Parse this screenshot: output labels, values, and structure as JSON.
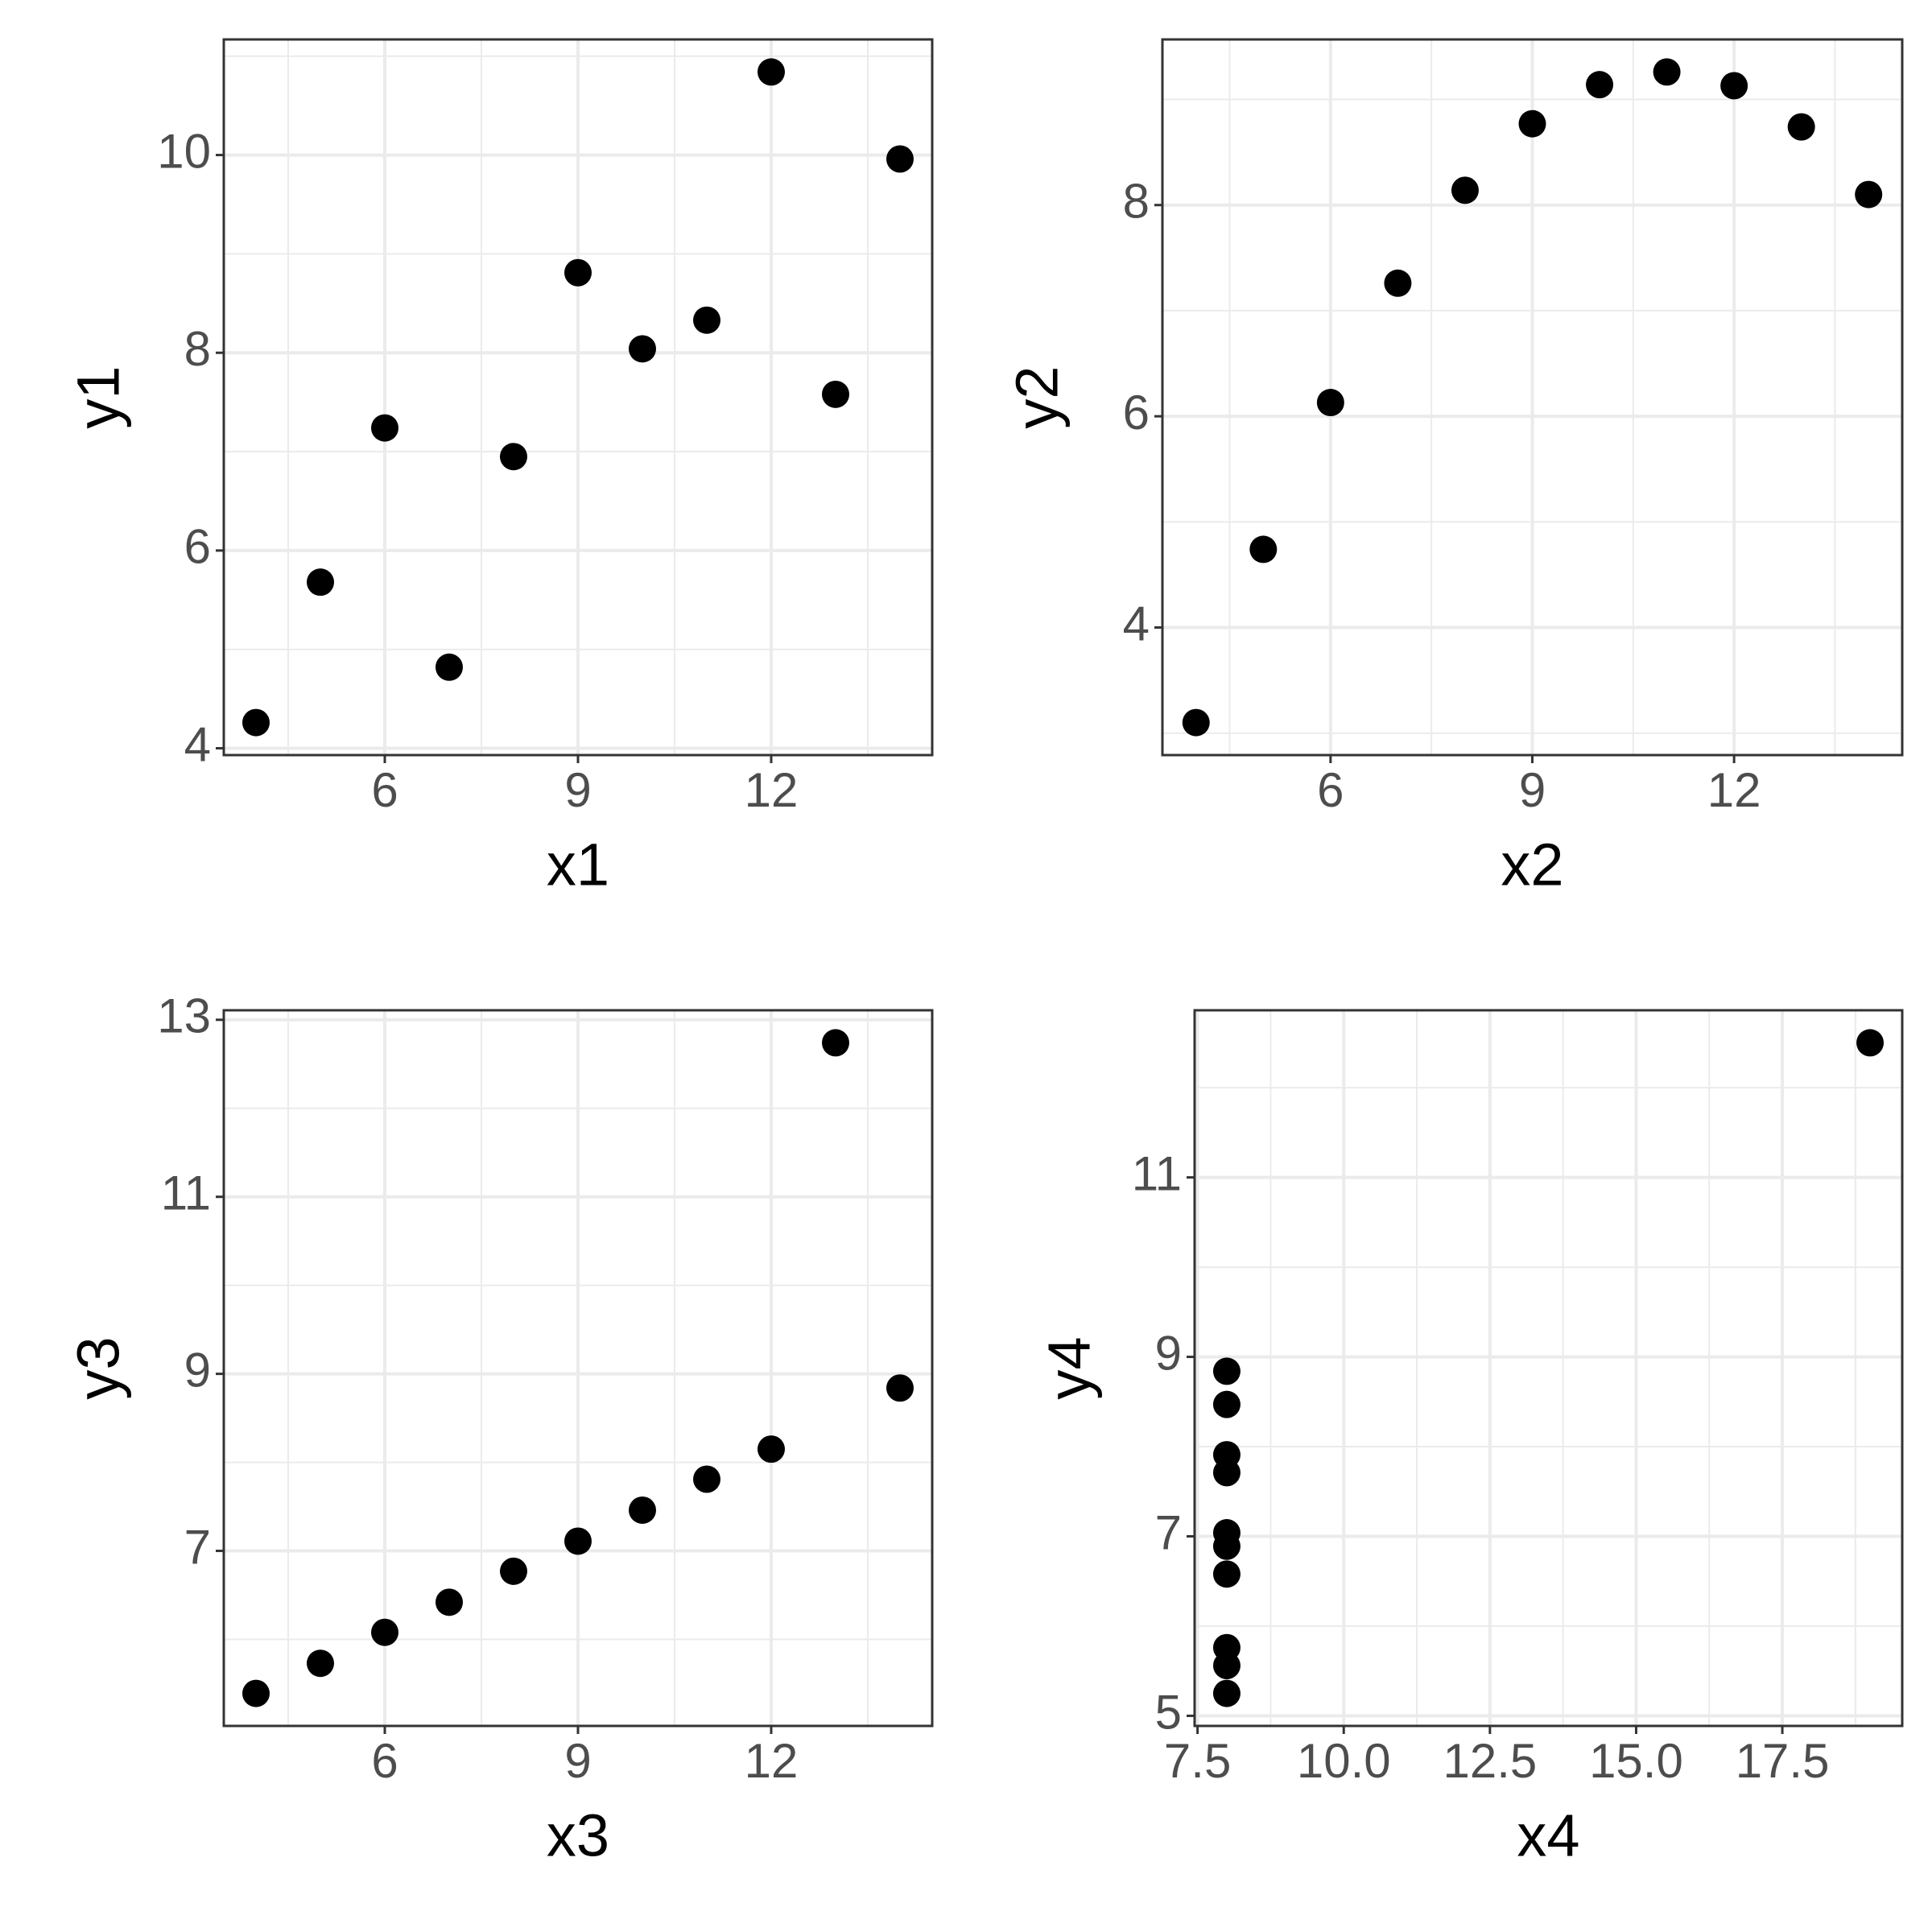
{
  "chart_data": [
    {
      "type": "scatter",
      "x_label": "x1",
      "y_label": "y1",
      "color": "#000000",
      "grid": true,
      "x": [
        10,
        8,
        13,
        9,
        11,
        14,
        6,
        4,
        12,
        7,
        5
      ],
      "y": [
        8.04,
        6.95,
        7.58,
        8.81,
        8.33,
        9.96,
        7.24,
        4.26,
        10.84,
        4.82,
        5.68
      ],
      "xlim": [
        3.5,
        14.5
      ],
      "ylim": [
        3.931,
        11.169
      ],
      "xticks": [
        6,
        9,
        12
      ],
      "yticks": [
        4,
        6,
        8,
        10
      ]
    },
    {
      "type": "scatter",
      "x_label": "x2",
      "y_label": "y2",
      "color": "#000000",
      "grid": true,
      "x": [
        10,
        8,
        13,
        9,
        11,
        14,
        6,
        4,
        12,
        7,
        5
      ],
      "y": [
        9.14,
        8.14,
        8.74,
        8.77,
        9.26,
        8.1,
        6.13,
        3.1,
        9.13,
        7.26,
        4.74
      ],
      "xlim": [
        3.5,
        14.5
      ],
      "ylim": [
        2.792,
        9.568
      ],
      "xticks": [
        6,
        9,
        12
      ],
      "yticks": [
        4,
        6,
        8
      ]
    },
    {
      "type": "scatter",
      "x_label": "x3",
      "y_label": "y3",
      "color": "#000000",
      "grid": true,
      "x": [
        10,
        8,
        13,
        9,
        11,
        14,
        6,
        4,
        12,
        7,
        5
      ],
      "y": [
        7.46,
        6.77,
        12.74,
        7.11,
        7.81,
        8.84,
        6.08,
        5.39,
        8.15,
        6.42,
        5.73
      ],
      "xlim": [
        3.5,
        14.5
      ],
      "ylim": [
        5.0225,
        13.1075
      ],
      "xticks": [
        6,
        9,
        12
      ],
      "yticks": [
        7,
        9,
        11,
        13
      ]
    },
    {
      "type": "scatter",
      "x_label": "x4",
      "y_label": "y4",
      "color": "#000000",
      "grid": true,
      "x": [
        8,
        8,
        8,
        8,
        8,
        8,
        8,
        19,
        8,
        8,
        8
      ],
      "y": [
        6.58,
        5.76,
        7.71,
        8.84,
        8.47,
        7.04,
        5.25,
        12.5,
        5.56,
        7.91,
        6.89
      ],
      "xlim": [
        7.45,
        19.55
      ],
      "ylim": [
        4.8875,
        12.8625
      ],
      "xticks": [
        7.5,
        {
          "value": 10,
          "label": "10.0"
        },
        12.5,
        {
          "value": 15,
          "label": "15.0"
        },
        17.5
      ],
      "yticks": [
        5,
        7,
        9,
        11
      ]
    }
  ]
}
